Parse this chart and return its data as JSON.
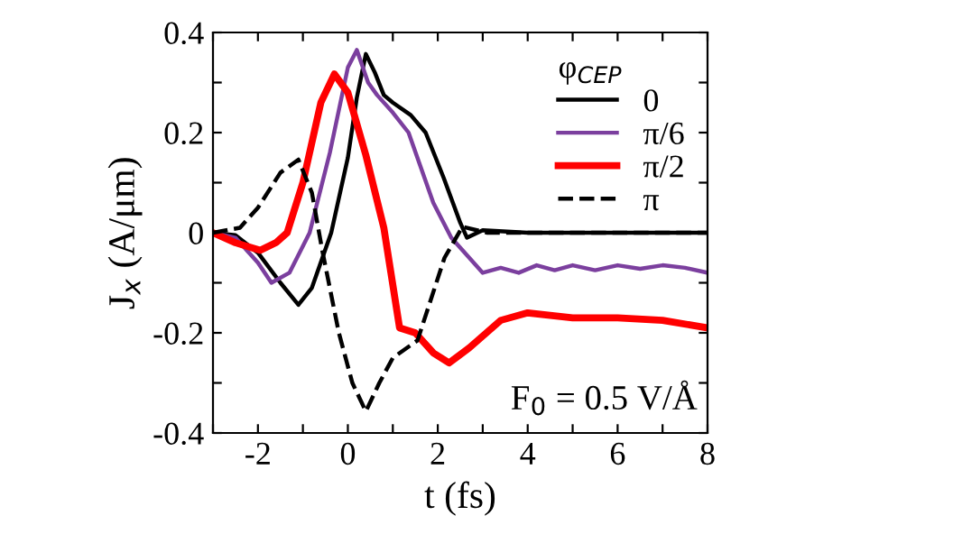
{
  "chart_data": {
    "type": "line",
    "xlabel": "t (fs)",
    "ylabel": "J$_{x}$ (A/μm)",
    "legend_title": "φ$_{CEP}$",
    "legend": "top right",
    "grid": false,
    "marker": "none",
    "xlim": [
      -3,
      8
    ],
    "ylim": [
      -0.4,
      0.4
    ],
    "xticks": [
      {
        "value": -3,
        "label": null
      },
      -2,
      {
        "value": -1,
        "label": null
      },
      0,
      {
        "value": 1,
        "label": null
      },
      2,
      {
        "value": 3,
        "label": null
      },
      4,
      {
        "value": 5,
        "label": null
      },
      6,
      {
        "value": 7,
        "label": null
      },
      8
    ],
    "yticks": [
      -0.4,
      {
        "value": -0.3,
        "label": null
      },
      -0.2,
      {
        "value": -0.1,
        "label": null
      },
      0,
      {
        "value": 0.1,
        "label": null
      },
      0.2,
      {
        "value": 0.3,
        "label": null
      },
      0.4
    ],
    "annotations": [
      "F$_{0}$ = 0.5 V/Å"
    ],
    "series": [
      {
        "name": "0",
        "color": "#000000",
        "line_style": "solid",
        "x": [
          -3,
          -2.5,
          -2,
          -1.5,
          -1.1,
          -0.8,
          -0.37,
          0,
          0.2,
          0.4,
          0.6,
          0.8,
          1.0,
          1.4,
          1.73,
          2.13,
          2.5,
          2.65,
          3,
          4,
          5,
          6,
          7,
          8
        ],
        "values": [
          0,
          -0.005,
          -0.04,
          -0.1,
          -0.144,
          -0.11,
          0,
          0.15,
          0.27,
          0.357,
          0.32,
          0.275,
          0.26,
          0.235,
          0.2,
          0.11,
          0.02,
          -0.01,
          0.005,
          0,
          0,
          0,
          0,
          0
        ]
      },
      {
        "name": "π/6",
        "color": "#7b3f9e",
        "line_style": "solid",
        "x": [
          -3,
          -2.5,
          -2,
          -1.7,
          -1.3,
          -0.85,
          -0.4,
          0,
          0.2,
          0.45,
          0.65,
          1.0,
          1.35,
          1.9,
          2.3,
          2.7,
          3.0,
          3.4,
          3.8,
          4.2,
          4.6,
          5.0,
          5.5,
          6.0,
          6.5,
          7.0,
          7.5,
          8
        ],
        "values": [
          0,
          -0.01,
          -0.06,
          -0.1,
          -0.08,
          0,
          0.16,
          0.33,
          0.365,
          0.3,
          0.275,
          0.24,
          0.2,
          0.06,
          -0.01,
          -0.05,
          -0.08,
          -0.07,
          -0.08,
          -0.065,
          -0.075,
          -0.065,
          -0.075,
          -0.065,
          -0.072,
          -0.065,
          -0.07,
          -0.08
        ]
      },
      {
        "name": "π/2",
        "color": "#ff0000",
        "line_style": "solid",
        "x": [
          -3,
          -2.5,
          -1.95,
          -1.6,
          -1.35,
          -1.0,
          -0.6,
          -0.3,
          0,
          0.4,
          0.8,
          1.15,
          1.5,
          1.9,
          2.25,
          2.7,
          3.4,
          4.0,
          5,
          6,
          7,
          8
        ],
        "values": [
          0,
          -0.02,
          -0.035,
          -0.02,
          0,
          0.1,
          0.26,
          0.317,
          0.28,
          0.155,
          0.01,
          -0.19,
          -0.2,
          -0.24,
          -0.26,
          -0.23,
          -0.175,
          -0.16,
          -0.17,
          -0.17,
          -0.175,
          -0.19
        ]
      },
      {
        "name": "π",
        "color": "#000000",
        "line_style": "dashed",
        "x": [
          -3,
          -2.4,
          -2,
          -1.5,
          -1.1,
          -0.8,
          -0.57,
          -0.2,
          0.1,
          0.4,
          0.7,
          1.0,
          1.55,
          2.15,
          2.55,
          3.1,
          4,
          5,
          6,
          7,
          8
        ],
        "values": [
          0,
          0.01,
          0.05,
          0.12,
          0.146,
          0.08,
          -0.035,
          -0.2,
          -0.3,
          -0.357,
          -0.3,
          -0.25,
          -0.215,
          -0.05,
          0.012,
          0,
          0,
          0,
          0,
          0,
          0
        ]
      }
    ]
  }
}
